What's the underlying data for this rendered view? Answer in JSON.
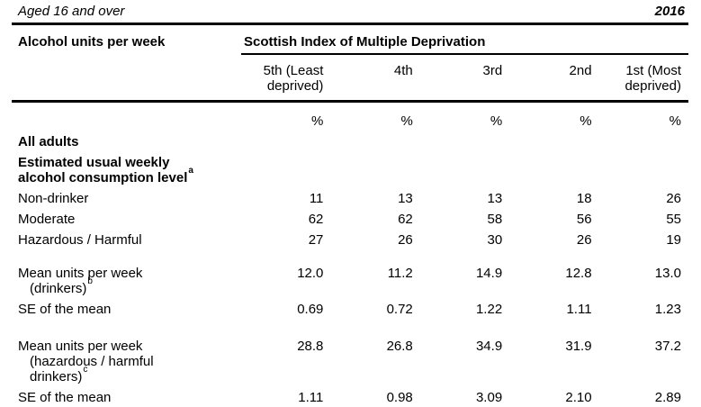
{
  "page": {
    "age_note": "Aged 16 and over",
    "year": "2016"
  },
  "table": {
    "row_header_title": "Alcohol units per week",
    "column_group_title": "Scottish Index of Multiple Deprivation",
    "columns": [
      "5th (Least\ndeprived)",
      "4th",
      "3rd",
      "2nd",
      "1st (Most\ndeprived)"
    ],
    "units": [
      "%",
      "%",
      "%",
      "%",
      "%"
    ],
    "rows": [
      {
        "label": "All adults",
        "values": []
      },
      {
        "label": "Estimated usual weekly\nalcohol consumption level",
        "sup": "a",
        "values": []
      },
      {
        "label": "Non-drinker",
        "values": [
          "11",
          "13",
          "13",
          "18",
          "26"
        ]
      },
      {
        "label": "Moderate",
        "values": [
          "62",
          "62",
          "58",
          "56",
          "55"
        ]
      },
      {
        "label": "Hazardous / Harmful",
        "values": [
          "27",
          "26",
          "30",
          "26",
          "19"
        ]
      },
      {
        "label": "Mean units per week\n(drinkers)",
        "sup": "b",
        "values": [
          "12.0",
          "11.2",
          "14.9",
          "12.8",
          "13.0"
        ]
      },
      {
        "label": "SE of the mean",
        "values": [
          "0.69",
          "0.72",
          "1.22",
          "1.11",
          "1.23"
        ]
      },
      {
        "label": "Mean units per week\n(hazardous / harmful\ndrinkers)",
        "sup": "c",
        "values": [
          "28.8",
          "26.8",
          "34.9",
          "31.9",
          "37.2"
        ]
      },
      {
        "label": "SE of the mean",
        "values": [
          "1.11",
          "0.98",
          "3.09",
          "2.10",
          "2.89"
        ]
      }
    ]
  }
}
